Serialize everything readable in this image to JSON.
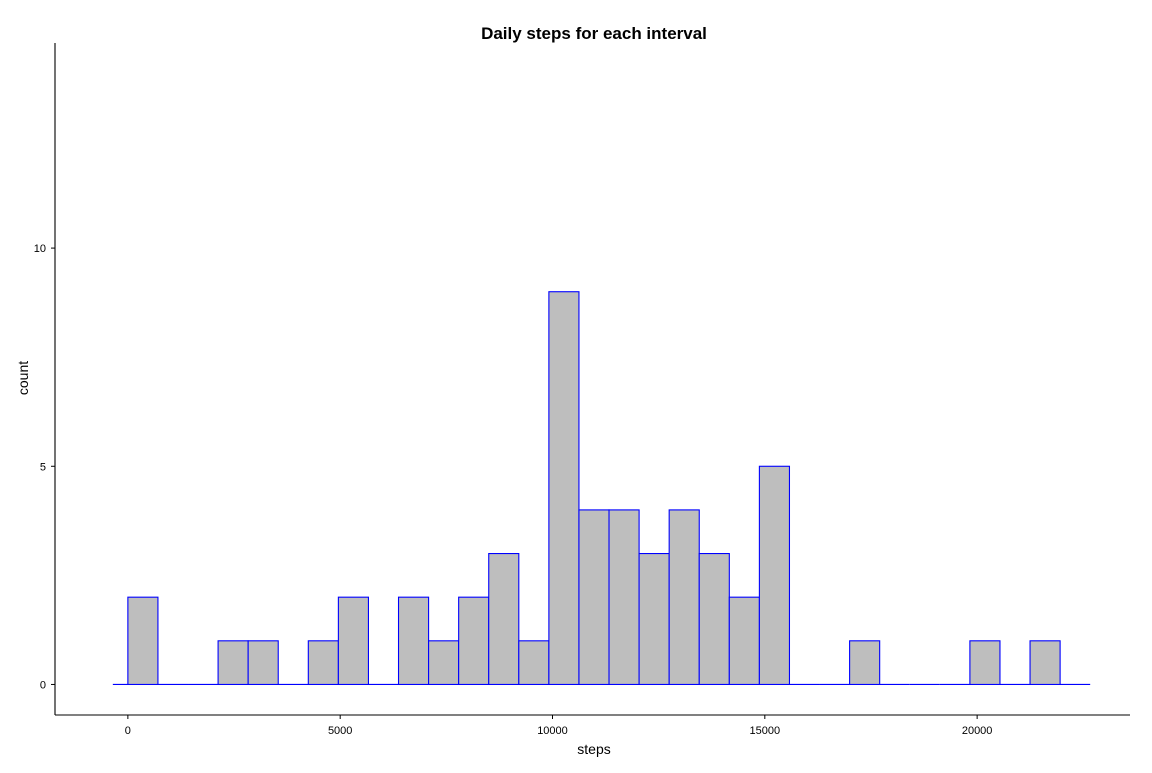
{
  "chart_data": {
    "type": "bar",
    "title": "Daily steps for each interval",
    "xlabel": "steps",
    "ylabel": "count",
    "binwidth": 708.2,
    "bins": [
      {
        "x_start": -354.1,
        "x_end": 354.1,
        "count": 0
      },
      {
        "x_start": 0,
        "x_end": 708.2,
        "count": 2
      },
      {
        "x_start": 708.2,
        "x_end": 1416.4,
        "count": 0
      },
      {
        "x_start": 1416.4,
        "x_end": 2124.6,
        "count": 0
      },
      {
        "x_start": 2124.6,
        "x_end": 2832.8,
        "count": 1
      },
      {
        "x_start": 2832.8,
        "x_end": 3541.0,
        "count": 1
      },
      {
        "x_start": 3541.0,
        "x_end": 4249.2,
        "count": 0
      },
      {
        "x_start": 4249.2,
        "x_end": 4957.4,
        "count": 1
      },
      {
        "x_start": 4957.4,
        "x_end": 5665.6,
        "count": 2
      },
      {
        "x_start": 5665.6,
        "x_end": 6373.8,
        "count": 0
      },
      {
        "x_start": 6373.8,
        "x_end": 7082.0,
        "count": 2
      },
      {
        "x_start": 7082.0,
        "x_end": 7790.2,
        "count": 1
      },
      {
        "x_start": 7790.2,
        "x_end": 8498.4,
        "count": 2
      },
      {
        "x_start": 8498.4,
        "x_end": 9206.6,
        "count": 3
      },
      {
        "x_start": 9206.6,
        "x_end": 9914.8,
        "count": 1
      },
      {
        "x_start": 9914.8,
        "x_end": 10623.0,
        "count": 9
      },
      {
        "x_start": 10623.0,
        "x_end": 11331.2,
        "count": 4
      },
      {
        "x_start": 11331.2,
        "x_end": 12039.4,
        "count": 4
      },
      {
        "x_start": 12039.4,
        "x_end": 12747.6,
        "count": 3
      },
      {
        "x_start": 12747.6,
        "x_end": 13455.8,
        "count": 4
      },
      {
        "x_start": 13455.8,
        "x_end": 14164.0,
        "count": 3
      },
      {
        "x_start": 14164.0,
        "x_end": 14872.2,
        "count": 2
      },
      {
        "x_start": 14872.2,
        "x_end": 15580.4,
        "count": 5
      },
      {
        "x_start": 15580.4,
        "x_end": 16288.6,
        "count": 0
      },
      {
        "x_start": 16288.6,
        "x_end": 16996.8,
        "count": 0
      },
      {
        "x_start": 16996.8,
        "x_end": 17705.0,
        "count": 1
      },
      {
        "x_start": 17705.0,
        "x_end": 18413.2,
        "count": 0
      },
      {
        "x_start": 18413.2,
        "x_end": 19121.4,
        "count": 0
      },
      {
        "x_start": 19121.4,
        "x_end": 19829.6,
        "count": 0
      },
      {
        "x_start": 19829.6,
        "x_end": 20537.8,
        "count": 1
      },
      {
        "x_start": 20537.8,
        "x_end": 21246.0,
        "count": 0
      },
      {
        "x_start": 21246.0,
        "x_end": 21954.2,
        "count": 1
      },
      {
        "x_start": 21954.2,
        "x_end": 22662.4,
        "count": 0
      }
    ],
    "x_ticks": [
      0,
      5000,
      10000,
      15000,
      20000
    ],
    "x_tick_labels": [
      "0",
      "5000",
      "10000",
      "15000",
      "20000"
    ],
    "y_ticks": [
      0,
      5,
      10
    ],
    "y_tick_labels": [
      "0",
      "5",
      "10"
    ],
    "xlim": [
      -1716,
      23600
    ],
    "ylim": [
      -0.7,
      14.7
    ],
    "grid": false,
    "legend": false,
    "colors": {
      "bar_fill": "#bebebe",
      "bar_outline": "#0000ff",
      "axis": "#000000",
      "background": "#ffffff"
    }
  }
}
